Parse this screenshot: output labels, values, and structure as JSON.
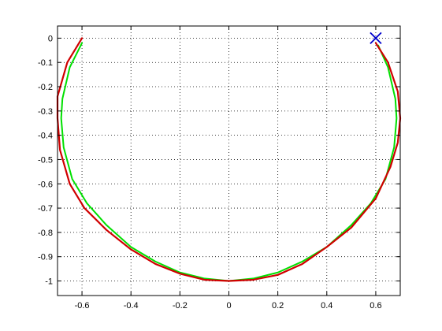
{
  "chart_data": {
    "type": "line",
    "title": "",
    "xlabel": "",
    "ylabel": "",
    "xlim": [
      -0.7,
      0.7
    ],
    "ylim": [
      -1.06,
      0.05
    ],
    "grid": true,
    "legend": "none",
    "x_ticks": [
      -0.6,
      -0.4,
      -0.2,
      0,
      0.2,
      0.4,
      0.6
    ],
    "x_tick_labels": [
      "-0.6",
      "-0.4",
      "-0.2",
      "0",
      "0.2",
      "0.4",
      "0.6"
    ],
    "y_ticks": [
      0,
      -0.1,
      -0.2,
      -0.3,
      -0.4,
      -0.5,
      -0.6,
      -0.7,
      -0.8,
      -0.9,
      -1
    ],
    "y_tick_labels": [
      "0",
      "-0.1",
      "-0.2",
      "-0.3",
      "-0.4",
      "-0.5",
      "-0.6",
      "-0.7",
      "-0.8",
      "-0.9",
      "-1"
    ],
    "series": [
      {
        "color": "#00e000",
        "points": [
          [
            -0.6,
            -0.02
          ],
          [
            -0.65,
            -0.12
          ],
          [
            -0.68,
            -0.25
          ],
          [
            -0.685,
            -0.33
          ],
          [
            -0.675,
            -0.45
          ],
          [
            -0.64,
            -0.58
          ],
          [
            -0.58,
            -0.68
          ],
          [
            -0.5,
            -0.77
          ],
          [
            -0.4,
            -0.86
          ],
          [
            -0.3,
            -0.92
          ],
          [
            -0.2,
            -0.965
          ],
          [
            -0.1,
            -0.99
          ],
          [
            0,
            -1.0
          ],
          [
            0.1,
            -0.99
          ],
          [
            0.2,
            -0.965
          ],
          [
            0.3,
            -0.92
          ],
          [
            0.4,
            -0.86
          ],
          [
            0.5,
            -0.77
          ],
          [
            0.58,
            -0.68
          ],
          [
            0.64,
            -0.58
          ],
          [
            0.675,
            -0.45
          ],
          [
            0.685,
            -0.33
          ],
          [
            0.68,
            -0.25
          ],
          [
            0.65,
            -0.12
          ],
          [
            0.61,
            -0.03
          ]
        ]
      },
      {
        "color": "#d00000",
        "points": [
          [
            -0.6,
            -0.0
          ],
          [
            -0.66,
            -0.1
          ],
          [
            -0.7,
            -0.24
          ],
          [
            -0.7,
            -0.33
          ],
          [
            -0.69,
            -0.46
          ],
          [
            -0.65,
            -0.6
          ],
          [
            -0.59,
            -0.7
          ],
          [
            -0.5,
            -0.79
          ],
          [
            -0.4,
            -0.87
          ],
          [
            -0.3,
            -0.93
          ],
          [
            -0.2,
            -0.97
          ],
          [
            -0.1,
            -0.995
          ],
          [
            0,
            -1.0
          ],
          [
            0.1,
            -0.995
          ],
          [
            0.2,
            -0.975
          ],
          [
            0.3,
            -0.93
          ],
          [
            0.4,
            -0.86
          ],
          [
            0.5,
            -0.78
          ],
          [
            0.6,
            -0.66
          ],
          [
            0.66,
            -0.53
          ],
          [
            0.69,
            -0.43
          ],
          [
            0.7,
            -0.33
          ],
          [
            0.69,
            -0.22
          ],
          [
            0.65,
            -0.1
          ],
          [
            0.6,
            -0.02
          ]
        ]
      }
    ],
    "markers": [
      {
        "x": 0.6,
        "y": 0.0,
        "symbol": "x",
        "color": "#0000cc"
      }
    ]
  }
}
